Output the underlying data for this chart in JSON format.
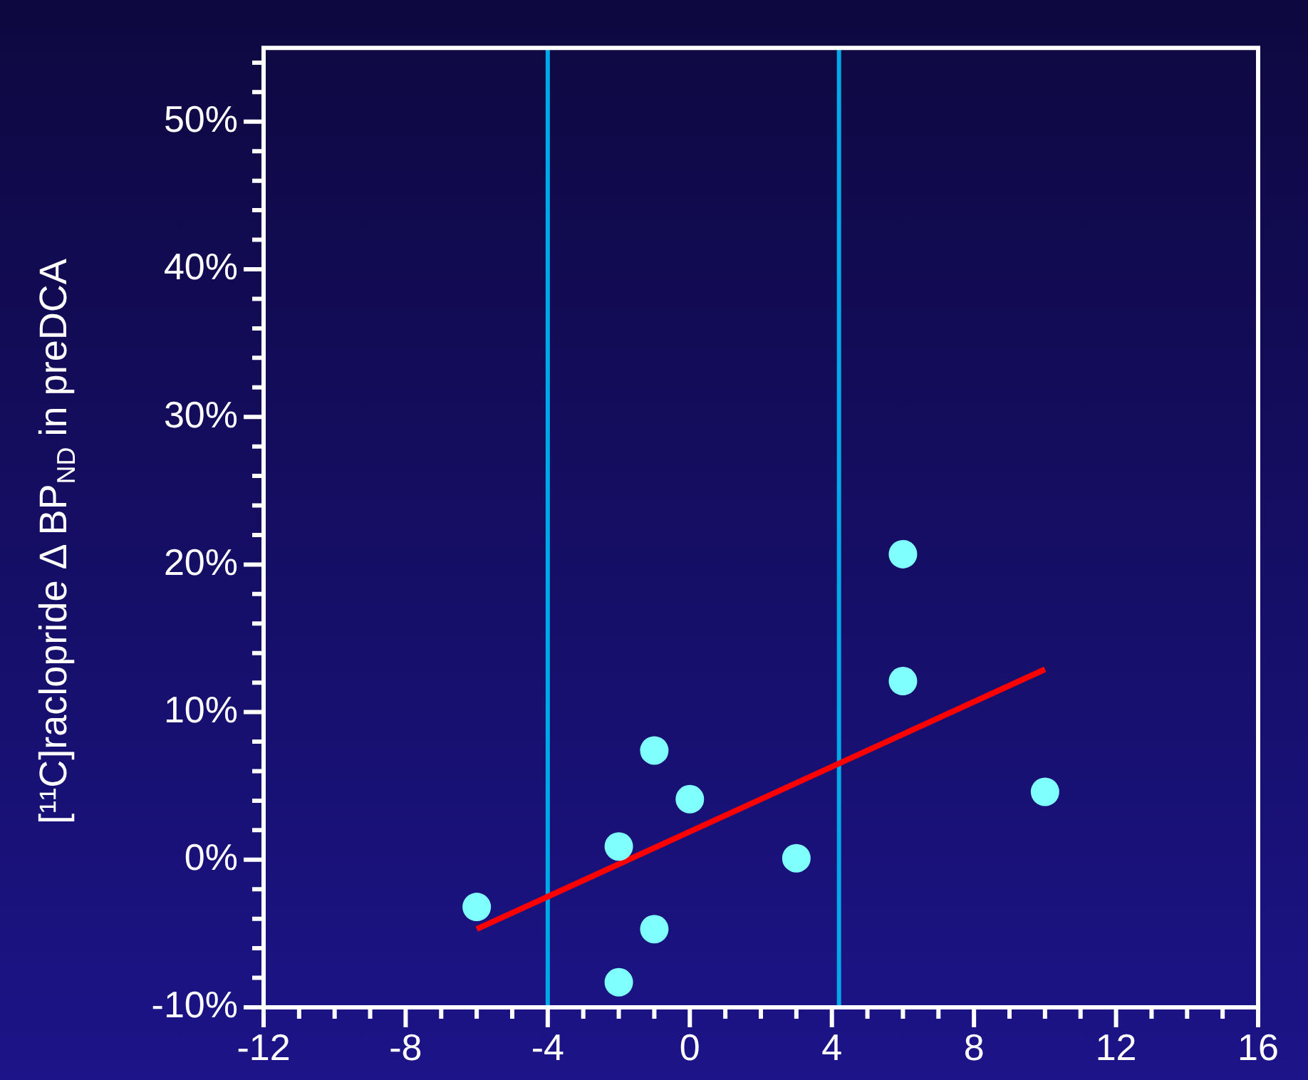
{
  "chart_data": {
    "type": "scatter",
    "ylabel": "[¹¹C]raclopride Δ BP$_{ND}$ in preDCA",
    "xlim": [
      -12,
      16
    ],
    "xticks": [
      -12,
      {
        "value": -11,
        "label": null
      },
      {
        "value": -10,
        "label": null
      },
      {
        "value": -9,
        "label": null
      },
      -8,
      {
        "value": -7,
        "label": null
      },
      {
        "value": -6,
        "label": null
      },
      {
        "value": -5,
        "label": null
      },
      -4,
      {
        "value": -3,
        "label": null
      },
      {
        "value": -2,
        "label": null
      },
      {
        "value": -1,
        "label": null
      },
      0,
      {
        "value": 1,
        "label": null
      },
      {
        "value": 2,
        "label": null
      },
      {
        "value": 3,
        "label": null
      },
      4,
      {
        "value": 5,
        "label": null
      },
      {
        "value": 6,
        "label": null
      },
      {
        "value": 7,
        "label": null
      },
      8,
      {
        "value": 9,
        "label": null
      },
      {
        "value": 10,
        "label": null
      },
      {
        "value": 11,
        "label": null
      },
      12,
      {
        "value": 13,
        "label": null
      },
      {
        "value": 14,
        "label": null
      },
      {
        "value": 15,
        "label": null
      },
      16
    ],
    "ylim": [
      -10,
      55
    ],
    "yticks": [
      {
        "value": -10,
        "label": "-10%"
      },
      {
        "value": -8,
        "label": null
      },
      {
        "value": -6,
        "label": null
      },
      {
        "value": -4,
        "label": null
      },
      {
        "value": -2,
        "label": null
      },
      {
        "value": 0,
        "label": "0%"
      },
      {
        "value": 2,
        "label": null
      },
      {
        "value": 4,
        "label": null
      },
      {
        "value": 6,
        "label": null
      },
      {
        "value": 8,
        "label": null
      },
      {
        "value": 10,
        "label": "10%"
      },
      {
        "value": 12,
        "label": null
      },
      {
        "value": 14,
        "label": null
      },
      {
        "value": 16,
        "label": null
      },
      {
        "value": 18,
        "label": null
      },
      {
        "value": 20,
        "label": "20%"
      },
      {
        "value": 22,
        "label": null
      },
      {
        "value": 24,
        "label": null
      },
      {
        "value": 26,
        "label": null
      },
      {
        "value": 28,
        "label": null
      },
      {
        "value": 30,
        "label": "30%"
      },
      {
        "value": 32,
        "label": null
      },
      {
        "value": 34,
        "label": null
      },
      {
        "value": 36,
        "label": null
      },
      {
        "value": 38,
        "label": null
      },
      {
        "value": 40,
        "label": "40%"
      },
      {
        "value": 42,
        "label": null
      },
      {
        "value": 44,
        "label": null
      },
      {
        "value": 46,
        "label": null
      },
      {
        "value": 48,
        "label": null
      },
      {
        "value": 50,
        "label": "50%"
      },
      {
        "value": 52,
        "label": null
      },
      {
        "value": 54,
        "label": null
      }
    ],
    "grid": false,
    "legend": false,
    "ref_lines": [
      {
        "axis": "x",
        "value": -4,
        "color": "#00a8e8"
      },
      {
        "axis": "x",
        "value": 4.2,
        "color": "#00a8e8"
      }
    ],
    "series": [
      {
        "type": "scatter",
        "color": "#80ffff",
        "marker": "circle",
        "x": [
          -6,
          -2,
          -2,
          -1,
          -1,
          0,
          3,
          6,
          6,
          10
        ],
        "values": [
          -3.2,
          0.9,
          -8.3,
          7.4,
          -4.7,
          4.1,
          0.1,
          20.7,
          12.1,
          4.6
        ]
      },
      {
        "type": "line",
        "color": "#ff0000",
        "marker": "none",
        "line_style": "solid",
        "x": [
          -6,
          10
        ],
        "values": [
          -4.7,
          12.9
        ]
      }
    ]
  }
}
